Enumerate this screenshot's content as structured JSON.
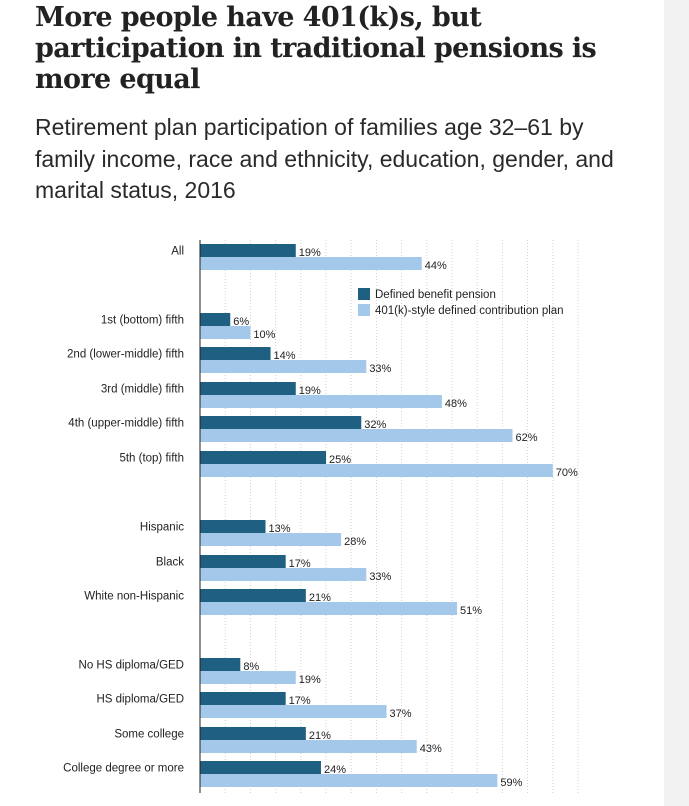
{
  "title": "More people have 401(k)s, but participation in traditional pensions is more equal",
  "subtitle": "Retirement plan participation of families age 32–61 by family income, race and ethnicity, education, gender, and marital status, 2016",
  "colors": {
    "defined_benefit": "#1f5f82",
    "defined_contribution": "#a3c8ea"
  },
  "chart_data": {
    "type": "bar",
    "orientation": "horizontal",
    "title": "",
    "xlabel": "",
    "ylabel": "",
    "xlim": [
      0,
      75
    ],
    "grid": true,
    "legend_position": "top-right",
    "groups": [
      [
        "All"
      ],
      [
        "1st (bottom) fifth",
        "2nd (lower-middle) fifth",
        "3rd (middle) fifth",
        "4th (upper-middle) fifth",
        "5th (top) fifth"
      ],
      [
        "Hispanic",
        "Black",
        "White non-Hispanic"
      ],
      [
        "No HS diploma/GED",
        "HS diploma/GED",
        "Some college",
        "College degree or more"
      ]
    ],
    "categories": [
      "All",
      "1st (bottom) fifth",
      "2nd (lower-middle) fifth",
      "3rd (middle) fifth",
      "4th (upper-middle) fifth",
      "5th (top) fifth",
      "Hispanic",
      "Black",
      "White non-Hispanic",
      "No HS diploma/GED",
      "HS diploma/GED",
      "Some college",
      "College degree or more"
    ],
    "series": [
      {
        "name": "Defined benefit pension",
        "values": [
          19,
          6,
          14,
          19,
          32,
          25,
          13,
          17,
          21,
          8,
          17,
          21,
          24
        ],
        "labels": [
          "19%",
          "6%",
          "14%",
          "19%",
          "32%",
          "25%",
          "13%",
          "17%",
          "21%",
          "8%",
          "17%",
          "21%",
          "24%"
        ]
      },
      {
        "name": "401(k)-style defined contribution plan",
        "values": [
          44,
          10,
          33,
          48,
          62,
          70,
          28,
          33,
          51,
          19,
          37,
          43,
          59
        ],
        "labels": [
          "44%",
          "10%",
          "33%",
          "48%",
          "62%",
          "70%",
          "28%",
          "33%",
          "51%",
          "19%",
          "37%",
          "43%",
          "59%"
        ]
      }
    ]
  }
}
